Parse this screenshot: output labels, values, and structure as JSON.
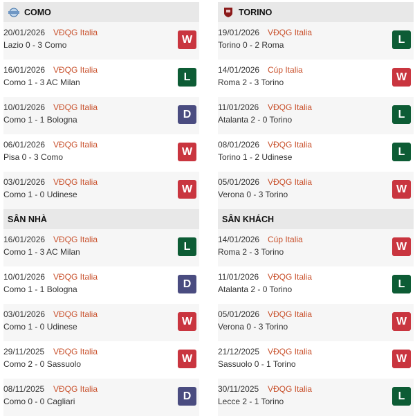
{
  "sections": [
    {
      "title": "COMO",
      "icon": "como-crest-icon",
      "matches": [
        {
          "date": "20/01/2026",
          "comp": "VĐQG Italia",
          "score": "Lazio 0 - 3 Como",
          "result": "W"
        },
        {
          "date": "16/01/2026",
          "comp": "VĐQG Italia",
          "score": "Como 1 - 3 AC Milan",
          "result": "L"
        },
        {
          "date": "10/01/2026",
          "comp": "VĐQG Italia",
          "score": "Como 1 - 1 Bologna",
          "result": "D"
        },
        {
          "date": "06/01/2026",
          "comp": "VĐQG Italia",
          "score": "Pisa 0 - 3 Como",
          "result": "W"
        },
        {
          "date": "03/01/2026",
          "comp": "VĐQG Italia",
          "score": "Como 1 - 0 Udinese",
          "result": "W"
        }
      ]
    },
    {
      "title": "TORINO",
      "icon": "torino-crest-icon",
      "matches": [
        {
          "date": "19/01/2026",
          "comp": "VĐQG Italia",
          "score": "Torino 0 - 2 Roma",
          "result": "L"
        },
        {
          "date": "14/01/2026",
          "comp": "Cúp Italia",
          "score": "Roma 2 - 3 Torino",
          "result": "W"
        },
        {
          "date": "11/01/2026",
          "comp": "VĐQG Italia",
          "score": "Atalanta 2 - 0 Torino",
          "result": "L"
        },
        {
          "date": "08/01/2026",
          "comp": "VĐQG Italia",
          "score": "Torino 1 - 2 Udinese",
          "result": "L"
        },
        {
          "date": "05/01/2026",
          "comp": "VĐQG Italia",
          "score": "Verona 0 - 3 Torino",
          "result": "W"
        }
      ]
    },
    {
      "title": "SÂN NHÀ",
      "matches": [
        {
          "date": "16/01/2026",
          "comp": "VĐQG Italia",
          "score": "Como 1 - 3 AC Milan",
          "result": "L"
        },
        {
          "date": "10/01/2026",
          "comp": "VĐQG Italia",
          "score": "Como 1 - 1 Bologna",
          "result": "D"
        },
        {
          "date": "03/01/2026",
          "comp": "VĐQG Italia",
          "score": "Como 1 - 0 Udinese",
          "result": "W"
        },
        {
          "date": "29/11/2025",
          "comp": "VĐQG Italia",
          "score": "Como 2 - 0 Sassuolo",
          "result": "W"
        },
        {
          "date": "08/11/2025",
          "comp": "VĐQG Italia",
          "score": "Como 0 - 0 Cagliari",
          "result": "D"
        }
      ]
    },
    {
      "title": "SÂN KHÁCH",
      "matches": [
        {
          "date": "14/01/2026",
          "comp": "Cúp Italia",
          "score": "Roma 2 - 3 Torino",
          "result": "W"
        },
        {
          "date": "11/01/2026",
          "comp": "VĐQG Italia",
          "score": "Atalanta 2 - 0 Torino",
          "result": "L"
        },
        {
          "date": "05/01/2026",
          "comp": "VĐQG Italia",
          "score": "Verona 0 - 3 Torino",
          "result": "W"
        },
        {
          "date": "21/12/2025",
          "comp": "VĐQG Italia",
          "score": "Sassuolo 0 - 1 Torino",
          "result": "W"
        },
        {
          "date": "30/11/2025",
          "comp": "VĐQG Italia",
          "score": "Lecce 2 - 1 Torino",
          "result": "L"
        }
      ]
    }
  ],
  "colors": {
    "W": "#c9353f",
    "L": "#0d5c35",
    "D": "#4a4c80",
    "competition": "#c8502b"
  }
}
